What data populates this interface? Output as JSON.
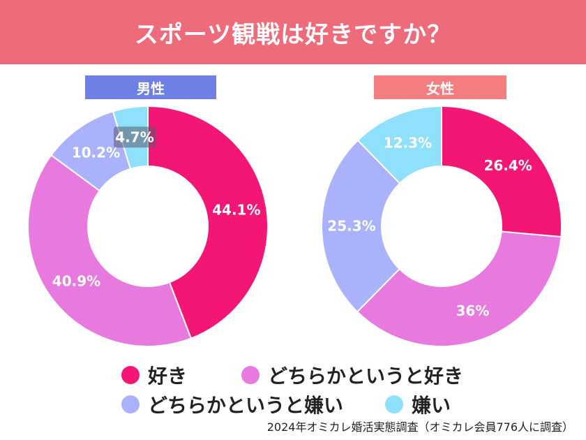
{
  "title": "スポーツ観戦は好きですか？",
  "source": "2024年オミカレ婚活実態調査（オミカレ会員776人に調査）",
  "colors": {
    "header": "#ee6b7b",
    "male_label": "#6e7fe6",
    "female_label": "#f47e7e",
    "like": "#f41675",
    "somewhat_like": "#e879df",
    "somewhat_dislike": "#aab2fc",
    "dislike": "#8fe0fb"
  },
  "legend": [
    {
      "label": "好き",
      "color": "#f41675"
    },
    {
      "label": "どちらかというと好き",
      "color": "#e879df"
    },
    {
      "label": "どちらかというと嫌い",
      "color": "#aab2fc"
    },
    {
      "label": "嫌い",
      "color": "#8fe0fb"
    }
  ],
  "chart_data": [
    {
      "type": "pie",
      "title": "男性",
      "categories": [
        "好き",
        "どちらかというと好き",
        "どちらかというと嫌い",
        "嫌い"
      ],
      "values": [
        44.1,
        40.9,
        10.2,
        4.7
      ],
      "labels": [
        "44.1%",
        "40.9%",
        "10.2%",
        "4.7%"
      ]
    },
    {
      "type": "pie",
      "title": "女性",
      "categories": [
        "好き",
        "どちらかというと好き",
        "どちらかというと嫌い",
        "嫌い"
      ],
      "values": [
        26.4,
        36,
        25.3,
        12.3
      ],
      "labels": [
        "26.4%",
        "36%",
        "25.3%",
        "12.3%"
      ]
    }
  ]
}
